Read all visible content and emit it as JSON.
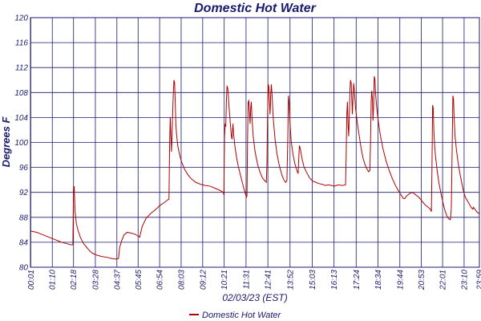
{
  "chart_data": {
    "type": "line",
    "title": "Domestic Hot Water",
    "xlabel": "02/03/23 (EST)",
    "ylabel": "Degrees F",
    "ylim": [
      80,
      120
    ],
    "yticks": [
      "80",
      "84",
      "88",
      "92",
      "96",
      "100",
      "104",
      "108",
      "112",
      "116",
      "120"
    ],
    "xlim": [
      0,
      1439
    ],
    "xticks": [
      {
        "t": 1,
        "label": "00:01"
      },
      {
        "t": 70,
        "label": "01:10"
      },
      {
        "t": 138,
        "label": "02:18"
      },
      {
        "t": 208,
        "label": "03:28"
      },
      {
        "t": 277,
        "label": "04:37"
      },
      {
        "t": 345,
        "label": "05:45"
      },
      {
        "t": 414,
        "label": "06:54"
      },
      {
        "t": 483,
        "label": "08:03"
      },
      {
        "t": 552,
        "label": "09:12"
      },
      {
        "t": 621,
        "label": "10:21"
      },
      {
        "t": 691,
        "label": "11:31"
      },
      {
        "t": 761,
        "label": "12:41"
      },
      {
        "t": 832,
        "label": "13:52"
      },
      {
        "t": 903,
        "label": "15:03"
      },
      {
        "t": 973,
        "label": "16:13"
      },
      {
        "t": 1044,
        "label": "17:24"
      },
      {
        "t": 1114,
        "label": "18:34"
      },
      {
        "t": 1184,
        "label": "19:44"
      },
      {
        "t": 1253,
        "label": "20:53"
      },
      {
        "t": 1321,
        "label": "22:01"
      },
      {
        "t": 1390,
        "label": "23:10"
      },
      {
        "t": 1439,
        "label": "23:59"
      }
    ],
    "grid": true,
    "legend_position": "bottom-center",
    "colors": {
      "line": "#b00000",
      "grid": "#1a1a6e",
      "text": "#1a1a6e"
    },
    "series": [
      {
        "name": "Domestic Hot Water",
        "points": [
          [
            0,
            85.8
          ],
          [
            20,
            85.6
          ],
          [
            40,
            85.2
          ],
          [
            60,
            84.8
          ],
          [
            80,
            84.4
          ],
          [
            100,
            84.0
          ],
          [
            115,
            83.8
          ],
          [
            130,
            83.6
          ],
          [
            136,
            83.6
          ],
          [
            138,
            92.5
          ],
          [
            140,
            93.0
          ],
          [
            143,
            89.0
          ],
          [
            147,
            87.0
          ],
          [
            152,
            86.0
          ],
          [
            160,
            84.8
          ],
          [
            170,
            83.8
          ],
          [
            180,
            83.2
          ],
          [
            190,
            82.6
          ],
          [
            200,
            82.2
          ],
          [
            215,
            81.9
          ],
          [
            230,
            81.7
          ],
          [
            245,
            81.6
          ],
          [
            260,
            81.4
          ],
          [
            275,
            81.3
          ],
          [
            282,
            81.4
          ],
          [
            286,
            83.2
          ],
          [
            292,
            84.2
          ],
          [
            300,
            85.2
          ],
          [
            310,
            85.6
          ],
          [
            320,
            85.5
          ],
          [
            335,
            85.3
          ],
          [
            345,
            85.0
          ],
          [
            350,
            84.8
          ],
          [
            358,
            86.5
          ],
          [
            370,
            87.8
          ],
          [
            385,
            88.6
          ],
          [
            400,
            89.2
          ],
          [
            415,
            89.9
          ],
          [
            430,
            90.4
          ],
          [
            440,
            90.8
          ],
          [
            444,
            90.9
          ],
          [
            446,
            99.5
          ],
          [
            448,
            104.0
          ],
          [
            450,
            101.0
          ],
          [
            452,
            98.5
          ],
          [
            454,
            101.5
          ],
          [
            456,
            105.0
          ],
          [
            458,
            108.0
          ],
          [
            460,
            110.0
          ],
          [
            462,
            109.6
          ],
          [
            464,
            106.5
          ],
          [
            466,
            103.0
          ],
          [
            468,
            101.5
          ],
          [
            472,
            99.5
          ],
          [
            478,
            98.0
          ],
          [
            485,
            96.8
          ],
          [
            495,
            95.6
          ],
          [
            505,
            94.8
          ],
          [
            515,
            94.2
          ],
          [
            530,
            93.6
          ],
          [
            545,
            93.3
          ],
          [
            560,
            93.1
          ],
          [
            575,
            93.0
          ],
          [
            590,
            92.7
          ],
          [
            608,
            92.3
          ],
          [
            618,
            92.0
          ],
          [
            620,
            91.6
          ],
          [
            622,
            101.0
          ],
          [
            624,
            103.0
          ],
          [
            626,
            102.5
          ],
          [
            628,
            106.5
          ],
          [
            630,
            109.0
          ],
          [
            632,
            108.8
          ],
          [
            634,
            107.8
          ],
          [
            636,
            106.0
          ],
          [
            640,
            103.5
          ],
          [
            644,
            101.0
          ],
          [
            646,
            100.5
          ],
          [
            649,
            103.0
          ],
          [
            651,
            101.5
          ],
          [
            655,
            99.5
          ],
          [
            660,
            97.8
          ],
          [
            666,
            96.2
          ],
          [
            672,
            95.0
          ],
          [
            678,
            93.8
          ],
          [
            684,
            92.6
          ],
          [
            688,
            92.0
          ],
          [
            692,
            91.2
          ],
          [
            694,
            91.4
          ],
          [
            696,
            101.0
          ],
          [
            698,
            106.5
          ],
          [
            700,
            106.7
          ],
          [
            702,
            105.0
          ],
          [
            704,
            103.0
          ],
          [
            706,
            105.5
          ],
          [
            708,
            106.5
          ],
          [
            710,
            104.0
          ],
          [
            714,
            101.0
          ],
          [
            720,
            98.5
          ],
          [
            728,
            96.5
          ],
          [
            736,
            95.2
          ],
          [
            744,
            94.3
          ],
          [
            752,
            93.8
          ],
          [
            756,
            93.6
          ],
          [
            758,
            96.5
          ],
          [
            760,
            104.0
          ],
          [
            762,
            109.3
          ],
          [
            764,
            109.0
          ],
          [
            766,
            106.5
          ],
          [
            768,
            104.5
          ],
          [
            770,
            107.5
          ],
          [
            772,
            109.3
          ],
          [
            774,
            108.0
          ],
          [
            778,
            104.0
          ],
          [
            784,
            100.5
          ],
          [
            790,
            98.2
          ],
          [
            798,
            96.2
          ],
          [
            806,
            94.8
          ],
          [
            812,
            94.0
          ],
          [
            818,
            93.6
          ],
          [
            822,
            93.9
          ],
          [
            825,
            101.0
          ],
          [
            827,
            107.5
          ],
          [
            829,
            106.5
          ],
          [
            832,
            103.0
          ],
          [
            836,
            100.0
          ],
          [
            842,
            98.0
          ],
          [
            848,
            96.5
          ],
          [
            854,
            95.5
          ],
          [
            858,
            95.0
          ],
          [
            860,
            97.5
          ],
          [
            862,
            99.5
          ],
          [
            865,
            99.0
          ],
          [
            870,
            97.5
          ],
          [
            876,
            96.2
          ],
          [
            885,
            95.2
          ],
          [
            895,
            94.3
          ],
          [
            905,
            93.8
          ],
          [
            915,
            93.6
          ],
          [
            925,
            93.4
          ],
          [
            935,
            93.3
          ],
          [
            945,
            93.1
          ],
          [
            955,
            93.2
          ],
          [
            965,
            93.1
          ],
          [
            975,
            93.0
          ],
          [
            985,
            93.2
          ],
          [
            1000,
            93.1
          ],
          [
            1010,
            93.2
          ],
          [
            1012,
            98.0
          ],
          [
            1014,
            104.5
          ],
          [
            1016,
            106.5
          ],
          [
            1018,
            103.0
          ],
          [
            1020,
            101.0
          ],
          [
            1022,
            104.0
          ],
          [
            1024,
            108.5
          ],
          [
            1026,
            110.0
          ],
          [
            1028,
            109.5
          ],
          [
            1030,
            107.0
          ],
          [
            1032,
            104.5
          ],
          [
            1034,
            107.5
          ],
          [
            1036,
            109.5
          ],
          [
            1038,
            108.5
          ],
          [
            1042,
            105.5
          ],
          [
            1048,
            103.0
          ],
          [
            1054,
            101.0
          ],
          [
            1060,
            99.0
          ],
          [
            1066,
            97.5
          ],
          [
            1072,
            96.5
          ],
          [
            1078,
            95.8
          ],
          [
            1084,
            95.3
          ],
          [
            1088,
            95.5
          ],
          [
            1090,
            100.0
          ],
          [
            1092,
            106.5
          ],
          [
            1094,
            108.3
          ],
          [
            1096,
            107.0
          ],
          [
            1098,
            103.5
          ],
          [
            1100,
            106.0
          ],
          [
            1102,
            110.6
          ],
          [
            1104,
            110.2
          ],
          [
            1106,
            108.0
          ],
          [
            1110,
            105.5
          ],
          [
            1116,
            103.0
          ],
          [
            1122,
            101.0
          ],
          [
            1130,
            99.0
          ],
          [
            1140,
            97.0
          ],
          [
            1150,
            95.5
          ],
          [
            1160,
            94.2
          ],
          [
            1170,
            93.1
          ],
          [
            1180,
            92.2
          ],
          [
            1190,
            91.4
          ],
          [
            1196,
            91.0
          ],
          [
            1200,
            91.0
          ],
          [
            1205,
            91.4
          ],
          [
            1215,
            91.8
          ],
          [
            1225,
            92.0
          ],
          [
            1235,
            91.6
          ],
          [
            1245,
            91.2
          ],
          [
            1255,
            90.6
          ],
          [
            1265,
            90.0
          ],
          [
            1275,
            89.6
          ],
          [
            1282,
            89.3
          ],
          [
            1285,
            88.9
          ],
          [
            1287,
            96.0
          ],
          [
            1289,
            106.0
          ],
          [
            1291,
            105.5
          ],
          [
            1293,
            102.0
          ],
          [
            1296,
            99.0
          ],
          [
            1300,
            97.0
          ],
          [
            1305,
            95.0
          ],
          [
            1310,
            93.3
          ],
          [
            1316,
            91.8
          ],
          [
            1322,
            90.4
          ],
          [
            1328,
            89.2
          ],
          [
            1334,
            88.3
          ],
          [
            1340,
            87.8
          ],
          [
            1346,
            87.6
          ],
          [
            1349,
            89.5
          ],
          [
            1352,
            100.0
          ],
          [
            1354,
            107.5
          ],
          [
            1356,
            107.0
          ],
          [
            1358,
            104.0
          ],
          [
            1361,
            101.0
          ],
          [
            1365,
            99.0
          ],
          [
            1370,
            97.0
          ],
          [
            1376,
            95.2
          ],
          [
            1382,
            93.6
          ],
          [
            1388,
            92.2
          ],
          [
            1394,
            91.2
          ],
          [
            1400,
            90.7
          ],
          [
            1406,
            90.2
          ],
          [
            1410,
            89.8
          ],
          [
            1414,
            89.5
          ],
          [
            1418,
            89.3
          ],
          [
            1420,
            89.6
          ],
          [
            1426,
            89.2
          ],
          [
            1432,
            88.8
          ],
          [
            1439,
            88.6
          ]
        ]
      }
    ]
  }
}
